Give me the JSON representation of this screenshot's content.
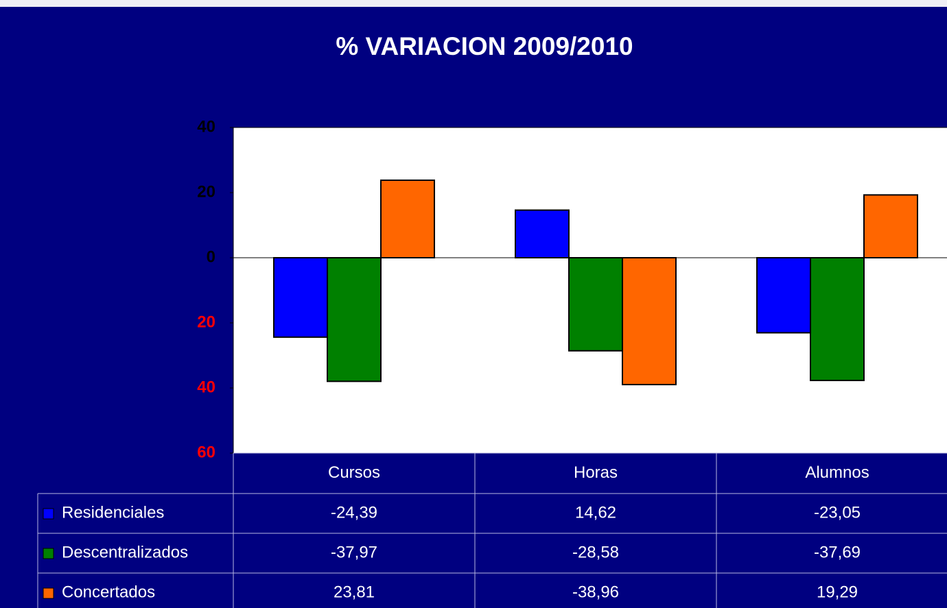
{
  "chart_data": {
    "type": "bar",
    "title": "% VARIACION 2009/2010",
    "categories": [
      "Cursos",
      "Horas",
      "Alumnos"
    ],
    "series": [
      {
        "name": "Residenciales",
        "color": "#0000ff",
        "values": [
          -24.39,
          14.62,
          -23.05
        ],
        "value_labels": [
          "-24,39",
          "14,62",
          "-23,05"
        ]
      },
      {
        "name": "Descentralizados",
        "color": "#008000",
        "values": [
          -37.97,
          -28.58,
          -37.69
        ],
        "value_labels": [
          "-37,97",
          "-28,58",
          "-37,69"
        ]
      },
      {
        "name": "Concertados",
        "color": "#ff6600",
        "values": [
          23.81,
          -38.96,
          19.29
        ],
        "value_labels": [
          "23,81",
          "-38,96",
          "19,29"
        ]
      }
    ],
    "ylim": [
      -60,
      40
    ],
    "yticks": [
      40,
      20,
      0,
      {
        "value": -20,
        "label": "20"
      },
      {
        "value": -40,
        "label": "40"
      },
      {
        "value": -60,
        "label": "60"
      }
    ],
    "tick_color": "#000000",
    "negative_tick_color": "#ff0000",
    "grid": false,
    "data_table": true
  }
}
